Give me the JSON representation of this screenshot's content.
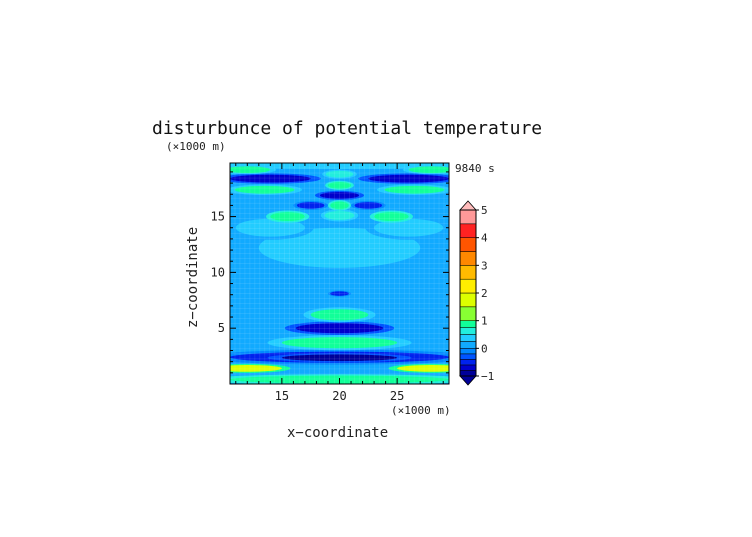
{
  "title": "disturbunce of potential temperature",
  "unit_y": "(×1000 m)",
  "unit_x": "(×1000 m)",
  "time_label": "9840 s",
  "xlabel": "x−coordinate",
  "ylabel": "z−coordinate",
  "chart_data": {
    "type": "heatmap",
    "title": "disturbunce of potential temperature",
    "xlabel": "x−coordinate",
    "ylabel": "z−coordinate",
    "x_unit": "(×1000 m)",
    "y_unit": "(×1000 m)",
    "xlim": [
      10.5,
      29.5
    ],
    "ylim": [
      0,
      19.8
    ],
    "x_ticks": [
      15,
      20,
      25
    ],
    "y_ticks": [
      5,
      10,
      15
    ],
    "time": "9840 s",
    "colorbar": {
      "min": -1,
      "max": 5,
      "tick_labels": [
        "5",
        "4",
        "3",
        "2",
        "1",
        "0",
        "−1"
      ],
      "tick_values": [
        5,
        4,
        3,
        2,
        1,
        0,
        -1
      ],
      "extend": "both",
      "levels": [
        {
          "lo": -1.0,
          "hi": -0.8,
          "color": "#000099"
        },
        {
          "lo": -0.8,
          "hi": -0.6,
          "color": "#0000cc"
        },
        {
          "lo": -0.6,
          "hi": -0.4,
          "color": "#0022ee"
        },
        {
          "lo": -0.4,
          "hi": -0.2,
          "color": "#0055ff"
        },
        {
          "lo": -0.2,
          "hi": 0.0,
          "color": "#0088ff"
        },
        {
          "lo": 0.0,
          "hi": 0.25,
          "color": "#11aaff"
        },
        {
          "lo": 0.25,
          "hi": 0.5,
          "color": "#22ccff"
        },
        {
          "lo": 0.5,
          "hi": 0.75,
          "color": "#22eedd"
        },
        {
          "lo": 0.75,
          "hi": 1.0,
          "color": "#11ff99"
        },
        {
          "lo": 1.0,
          "hi": 1.5,
          "color": "#88ff33"
        },
        {
          "lo": 1.5,
          "hi": 2.0,
          "color": "#ddff00"
        },
        {
          "lo": 2.0,
          "hi": 2.5,
          "color": "#ffee00"
        },
        {
          "lo": 2.5,
          "hi": 3.0,
          "color": "#ffbb00"
        },
        {
          "lo": 3.0,
          "hi": 3.5,
          "color": "#ff8800"
        },
        {
          "lo": 3.5,
          "hi": 4.0,
          "color": "#ff5500"
        },
        {
          "lo": 4.0,
          "hi": 4.5,
          "color": "#ff2222"
        },
        {
          "lo": 4.5,
          "hi": 5.0,
          "color": "#ff9999"
        },
        {
          "lo": 5.0,
          "hi": 5.5,
          "color": "#ffbbbb"
        }
      ]
    },
    "background_level": 0.1,
    "features": [
      {
        "x": 20,
        "z": 0.4,
        "rx": 9.5,
        "rz": 0.35,
        "value": 0.9
      },
      {
        "x": 12,
        "z": 1.4,
        "rx": 3.0,
        "rz": 0.3,
        "value": 1.6
      },
      {
        "x": 28,
        "z": 1.4,
        "rx": 3.0,
        "rz": 0.3,
        "value": 1.6
      },
      {
        "x": 20,
        "z": 2.4,
        "rx": 9.5,
        "rz": 0.5,
        "value": -0.5
      },
      {
        "x": 20,
        "z": 2.35,
        "rx": 5.0,
        "rz": 0.3,
        "value": -0.9
      },
      {
        "x": 20,
        "z": 3.7,
        "rx": 5.0,
        "rz": 0.5,
        "value": 0.8
      },
      {
        "x": 20,
        "z": 5.0,
        "rx": 3.8,
        "rz": 0.45,
        "value": -0.8
      },
      {
        "x": 20,
        "z": 6.2,
        "rx": 2.5,
        "rz": 0.5,
        "value": 0.8
      },
      {
        "x": 20,
        "z": 8.1,
        "rx": 0.8,
        "rz": 0.2,
        "value": -0.5
      },
      {
        "x": 20,
        "z": 12.2,
        "rx": 7.0,
        "rz": 1.8,
        "value": 0.3
      },
      {
        "x": 14,
        "z": 14.0,
        "rx": 3.0,
        "rz": 0.8,
        "value": 0.35
      },
      {
        "x": 26,
        "z": 14.0,
        "rx": 3.0,
        "rz": 0.8,
        "value": 0.35
      },
      {
        "x": 15.5,
        "z": 15.0,
        "rx": 1.5,
        "rz": 0.4,
        "value": 0.9
      },
      {
        "x": 24.5,
        "z": 15.0,
        "rx": 1.5,
        "rz": 0.4,
        "value": 0.9
      },
      {
        "x": 20,
        "z": 15.1,
        "rx": 1.3,
        "rz": 0.4,
        "value": 0.5
      },
      {
        "x": 17.5,
        "z": 16.0,
        "rx": 1.2,
        "rz": 0.3,
        "value": -0.5
      },
      {
        "x": 22.5,
        "z": 16.0,
        "rx": 1.2,
        "rz": 0.3,
        "value": -0.5
      },
      {
        "x": 20,
        "z": 16.0,
        "rx": 0.8,
        "rz": 0.35,
        "value": 0.9
      },
      {
        "x": 20,
        "z": 16.9,
        "rx": 1.7,
        "rz": 0.3,
        "value": -0.8
      },
      {
        "x": 13.5,
        "z": 17.4,
        "rx": 2.6,
        "rz": 0.35,
        "value": 0.8
      },
      {
        "x": 26.5,
        "z": 17.4,
        "rx": 2.6,
        "rz": 0.35,
        "value": 0.8
      },
      {
        "x": 20,
        "z": 17.8,
        "rx": 1.0,
        "rz": 0.3,
        "value": 0.9
      },
      {
        "x": 14,
        "z": 18.4,
        "rx": 3.5,
        "rz": 0.35,
        "value": -0.7
      },
      {
        "x": 26,
        "z": 18.4,
        "rx": 3.5,
        "rz": 0.35,
        "value": -0.7
      },
      {
        "x": 12,
        "z": 19.2,
        "rx": 2.0,
        "rz": 0.3,
        "value": 0.8
      },
      {
        "x": 28,
        "z": 19.2,
        "rx": 2.0,
        "rz": 0.3,
        "value": 0.8
      },
      {
        "x": 20,
        "z": 18.8,
        "rx": 1.2,
        "rz": 0.3,
        "value": 0.5
      },
      {
        "x": 20,
        "z": 19.6,
        "rx": 9.5,
        "rz": 0.25,
        "value": 0.4
      }
    ]
  }
}
